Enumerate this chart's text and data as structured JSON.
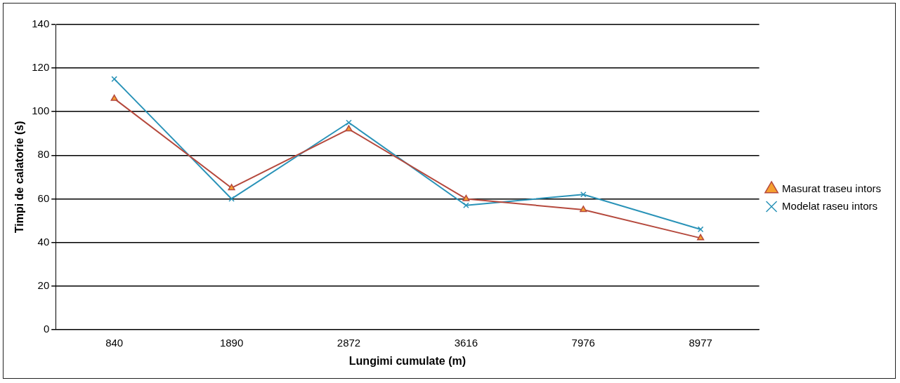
{
  "chart_data": {
    "type": "line",
    "xlabel": "Lungimi cumulate (m)",
    "ylabel": "Timpi de calatorie (s)",
    "categories": [
      "840",
      "1890",
      "2872",
      "3616",
      "7976",
      "8977"
    ],
    "series": [
      {
        "name": "Masurat traseu intors",
        "color": "#b5493d",
        "marker": "triangle",
        "values": [
          106,
          65,
          92,
          60,
          55,
          42
        ]
      },
      {
        "name": "Modelat raseu intors",
        "color": "#2a93b8",
        "marker": "cross",
        "values": [
          115,
          60,
          95,
          57,
          62,
          46
        ]
      }
    ],
    "ylim": [
      0,
      140
    ],
    "yticks": [
      0,
      20,
      40,
      60,
      80,
      100,
      120,
      140
    ],
    "grid": "y",
    "legend": "right",
    "line_style": "solid"
  }
}
